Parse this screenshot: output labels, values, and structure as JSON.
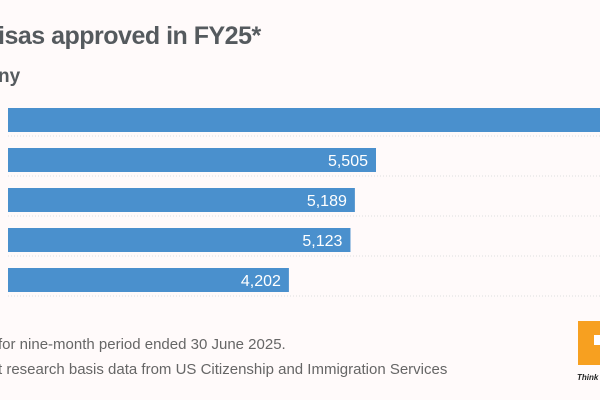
{
  "chart_data": {
    "type": "bar",
    "orientation": "horizontal",
    "title": "isas approved in FY25*",
    "subtitle": "ny",
    "bars": [
      {
        "value": null,
        "label": "",
        "clipped": true
      },
      {
        "value": 5505,
        "label": "5,505"
      },
      {
        "value": 5189,
        "label": "5,189"
      },
      {
        "value": 5123,
        "label": "5,123"
      },
      {
        "value": 4202,
        "label": "4,202"
      }
    ],
    "bar_color": "#4a90cd",
    "label_color": "#ffffff",
    "grid": false
  },
  "notes": [
    "for nine-month period ended 30 June 2025.",
    "t research basis data from US Citizenship and Immigration Services"
  ],
  "logo": {
    "tagline": "Think A",
    "color": "#f7a020"
  }
}
